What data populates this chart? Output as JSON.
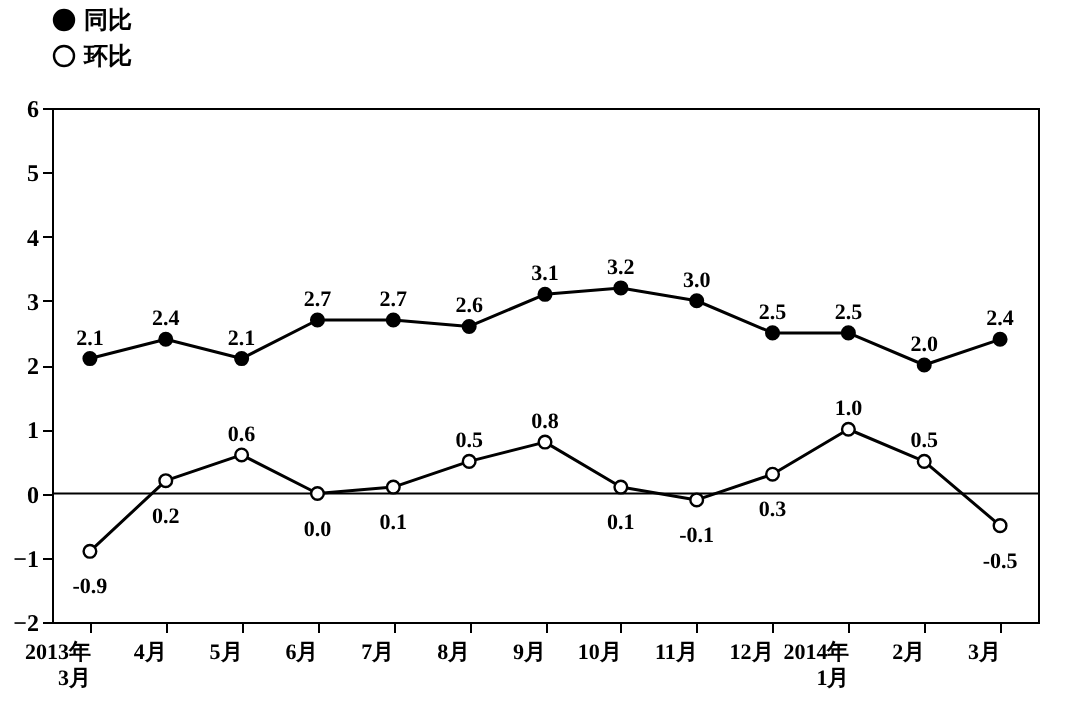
{
  "chart_data": {
    "type": "line",
    "categories": [
      "2013年\n3月",
      "4月",
      "5月",
      "6月",
      "7月",
      "8月",
      "9月",
      "10月",
      "11月",
      "12月",
      "2014年\n1月",
      "2月",
      "3月"
    ],
    "series": [
      {
        "name": "同比",
        "color": "#000000",
        "values": [
          2.1,
          2.4,
          2.1,
          2.7,
          2.7,
          2.6,
          3.1,
          3.2,
          3.0,
          2.5,
          2.5,
          2.0,
          2.4
        ],
        "value_labels": [
          "2.1",
          "2.4",
          "2.1",
          "2.7",
          "2.7",
          "2.6",
          "3.1",
          "3.2",
          "3.0",
          "2.5",
          "2.5",
          "2.0",
          "2.4"
        ]
      },
      {
        "name": "环比",
        "color": "#000000",
        "values": [
          -0.9,
          0.2,
          0.6,
          0.0,
          0.1,
          0.5,
          0.8,
          0.1,
          -0.1,
          0.3,
          1.0,
          0.5,
          -0.5
        ],
        "value_labels": [
          "-0.9",
          "0.2",
          "0.6",
          "0.0",
          "0.1",
          "0.5",
          "0.8",
          "0.1",
          "-0.1",
          "0.3",
          "1.0",
          "0.5",
          "-0.5"
        ]
      }
    ],
    "ylim": [
      -2,
      6
    ],
    "yticks": [
      -2,
      -1,
      0,
      1,
      2,
      3,
      4,
      5,
      6
    ],
    "grid": false,
    "legend": "top left",
    "marker": "circle",
    "line_style": "solid",
    "ref_lines": [
      {
        "axis": "y",
        "value": 0
      }
    ]
  }
}
